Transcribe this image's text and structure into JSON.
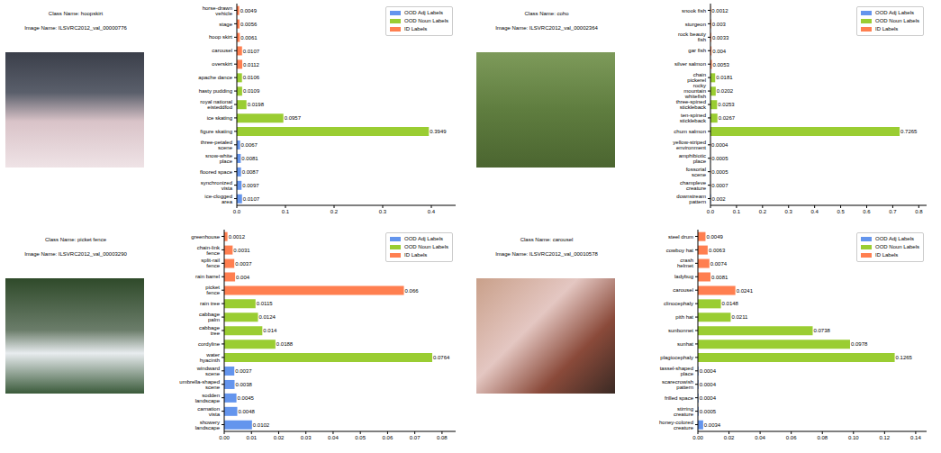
{
  "chart_data": [
    {
      "type": "bar",
      "orientation": "horizontal",
      "stacked": true,
      "data_labels": true,
      "grid": false,
      "legend": "upper right",
      "title": "Class Name: hoopskirt",
      "subtitle": "Image Name: ILSVRC2012_val_00000776",
      "categories": [
        "horse-drawn vehicle",
        "stage",
        "hoop skirt",
        "carousel",
        "overskirt",
        "apache dance",
        "hasty pudding",
        "royal national eisteddfod",
        "ice skating",
        "figure skating",
        "three-petaled scene",
        "snow-white place",
        "floored space",
        "synchronized vista",
        "ice-clogged area"
      ],
      "series": [
        {
          "name": "OOD Adj Labels",
          "color": "#6495ed",
          "values": [
            null,
            null,
            null,
            null,
            null,
            null,
            null,
            null,
            null,
            null,
            0.0067,
            0.0081,
            0.0087,
            0.0097,
            0.0107
          ]
        },
        {
          "name": "OOD Noun Labels",
          "color": "#9acd32",
          "values": [
            null,
            null,
            null,
            null,
            null,
            0.0106,
            0.0109,
            0.0198,
            0.0957,
            0.3949,
            null,
            null,
            null,
            null,
            null
          ]
        },
        {
          "name": "ID Labels",
          "color": "#ff7f50",
          "values": [
            0.0049,
            0.0056,
            0.0061,
            0.0107,
            0.0112,
            null,
            null,
            null,
            null,
            null,
            null,
            null,
            null,
            null,
            null
          ]
        }
      ],
      "xlim": [
        0,
        0.45
      ],
      "xticks": [
        {
          "value": 0,
          "label": "0.0"
        },
        0.1,
        0.2,
        0.3,
        0.4
      ]
    },
    {
      "type": "bar",
      "orientation": "horizontal",
      "stacked": true,
      "data_labels": true,
      "grid": false,
      "legend": "upper right",
      "title": "Class Name: coho",
      "subtitle": "Image Name: ILSVRC2012_val_00002364",
      "categories": [
        "snook fish",
        "sturgeon",
        "rock beauty fish",
        "gar fish",
        "silver salmon",
        "chain pickerel",
        "rocky mountain whitefish",
        "three-spined stickleback",
        "ten-spined stickleback",
        "chum salmon",
        "yellow-striped environment",
        "amphibiotic place",
        "fossorial scene",
        "champleve creature",
        "downstream pattern"
      ],
      "series": [
        {
          "name": "OOD Adj Labels",
          "color": "#6495ed",
          "values": [
            null,
            null,
            null,
            null,
            null,
            null,
            null,
            null,
            null,
            null,
            0.0004,
            0.0005,
            0.0005,
            0.0007,
            0.002
          ]
        },
        {
          "name": "OOD Noun Labels",
          "color": "#9acd32",
          "values": [
            null,
            null,
            null,
            null,
            null,
            0.0181,
            0.0202,
            0.0253,
            0.0267,
            0.7265,
            null,
            null,
            null,
            null,
            null
          ]
        },
        {
          "name": "ID Labels",
          "color": "#ff7f50",
          "values": [
            0.0012,
            0.003,
            0.0033,
            0.004,
            0.0053,
            null,
            null,
            null,
            null,
            null,
            null,
            null,
            null,
            null,
            null
          ]
        }
      ],
      "xlim": [
        0,
        0.83
      ],
      "xticks": [
        {
          "value": 0,
          "label": "0.0"
        },
        0.1,
        0.2,
        0.3,
        0.4,
        0.5,
        0.6,
        0.7,
        0.8
      ]
    },
    {
      "type": "bar",
      "orientation": "horizontal",
      "stacked": true,
      "data_labels": true,
      "grid": false,
      "legend": "upper right",
      "title": "Class Name: picket fence",
      "subtitle": "Image Name: ILSVRC2012_val_00003290",
      "categories": [
        "greenhouse",
        "chain-link fence",
        "split-rail fence",
        "rain barrel",
        "picket fence",
        "rain tree",
        "cabbage palm",
        "cabbage tree",
        "cordyline",
        "water hyacinth",
        "windward scene",
        "umbrella-shaped scene",
        "sodden landscape",
        "carnation vista",
        "showery landscape"
      ],
      "series": [
        {
          "name": "OOD Adj Labels",
          "color": "#6495ed",
          "values": [
            null,
            null,
            null,
            null,
            null,
            null,
            null,
            null,
            null,
            null,
            0.0037,
            0.0038,
            0.0045,
            0.0048,
            0.0102
          ]
        },
        {
          "name": "OOD Noun Labels",
          "color": "#9acd32",
          "values": [
            null,
            null,
            null,
            null,
            null,
            0.0115,
            0.0124,
            0.014,
            0.0188,
            0.0764,
            null,
            null,
            null,
            null,
            null
          ]
        },
        {
          "name": "ID Labels",
          "color": "#ff7f50",
          "values": [
            0.0012,
            0.0031,
            0.0037,
            0.004,
            0.066,
            null,
            null,
            null,
            null,
            null,
            null,
            null,
            null,
            null,
            null
          ]
        }
      ],
      "xlim": [
        0,
        0.085
      ],
      "xticks": [
        {
          "value": 0,
          "label": "0.00"
        },
        {
          "value": 0.01,
          "label": "0.01"
        },
        {
          "value": 0.02,
          "label": "0.02"
        },
        {
          "value": 0.03,
          "label": "0.03"
        },
        {
          "value": 0.04,
          "label": "0.04"
        },
        {
          "value": 0.05,
          "label": "0.05"
        },
        {
          "value": 0.06,
          "label": "0.06"
        },
        {
          "value": 0.07,
          "label": "0.07"
        },
        {
          "value": 0.08,
          "label": "0.08"
        }
      ]
    },
    {
      "type": "bar",
      "orientation": "horizontal",
      "stacked": true,
      "data_labels": true,
      "grid": false,
      "legend": "upper right",
      "title": "Class Name: carousel",
      "subtitle": "Image Name: ILSVRC2012_val_00010578",
      "categories": [
        "steel drum",
        "cowboy hat",
        "crash helmet",
        "ladybug",
        "carousel",
        "clinocephaly",
        "pith hat",
        "sunbonnet",
        "sunhat",
        "plagiocephaly",
        "tassel-shaped place",
        "scarecrowish pattern",
        "frilled space",
        "stirring creature",
        "honey-colored creature"
      ],
      "series": [
        {
          "name": "OOD Adj Labels",
          "color": "#6495ed",
          "values": [
            null,
            null,
            null,
            null,
            null,
            null,
            null,
            null,
            null,
            null,
            0.0004,
            0.0004,
            0.0004,
            0.0005,
            0.0034
          ]
        },
        {
          "name": "OOD Noun Labels",
          "color": "#9acd32",
          "values": [
            null,
            null,
            null,
            null,
            null,
            0.0148,
            0.0211,
            0.0738,
            0.0978,
            0.1265,
            null,
            null,
            null,
            null,
            null
          ]
        },
        {
          "name": "ID Labels",
          "color": "#ff7f50",
          "values": [
            0.0049,
            0.0063,
            0.0074,
            0.0081,
            0.0241,
            null,
            null,
            null,
            null,
            null,
            null,
            null,
            null,
            null,
            null
          ]
        }
      ],
      "xlim": [
        0,
        0.147
      ],
      "xticks": [
        {
          "value": 0,
          "label": "0.00"
        },
        {
          "value": 0.02,
          "label": "0.02"
        },
        {
          "value": 0.04,
          "label": "0.04"
        },
        {
          "value": 0.06,
          "label": "0.06"
        },
        {
          "value": 0.08,
          "label": "0.08"
        },
        {
          "value": 0.1,
          "label": "0.10"
        },
        {
          "value": 0.12,
          "label": "0.12"
        },
        {
          "value": 0.14,
          "label": "0.14"
        }
      ]
    }
  ]
}
